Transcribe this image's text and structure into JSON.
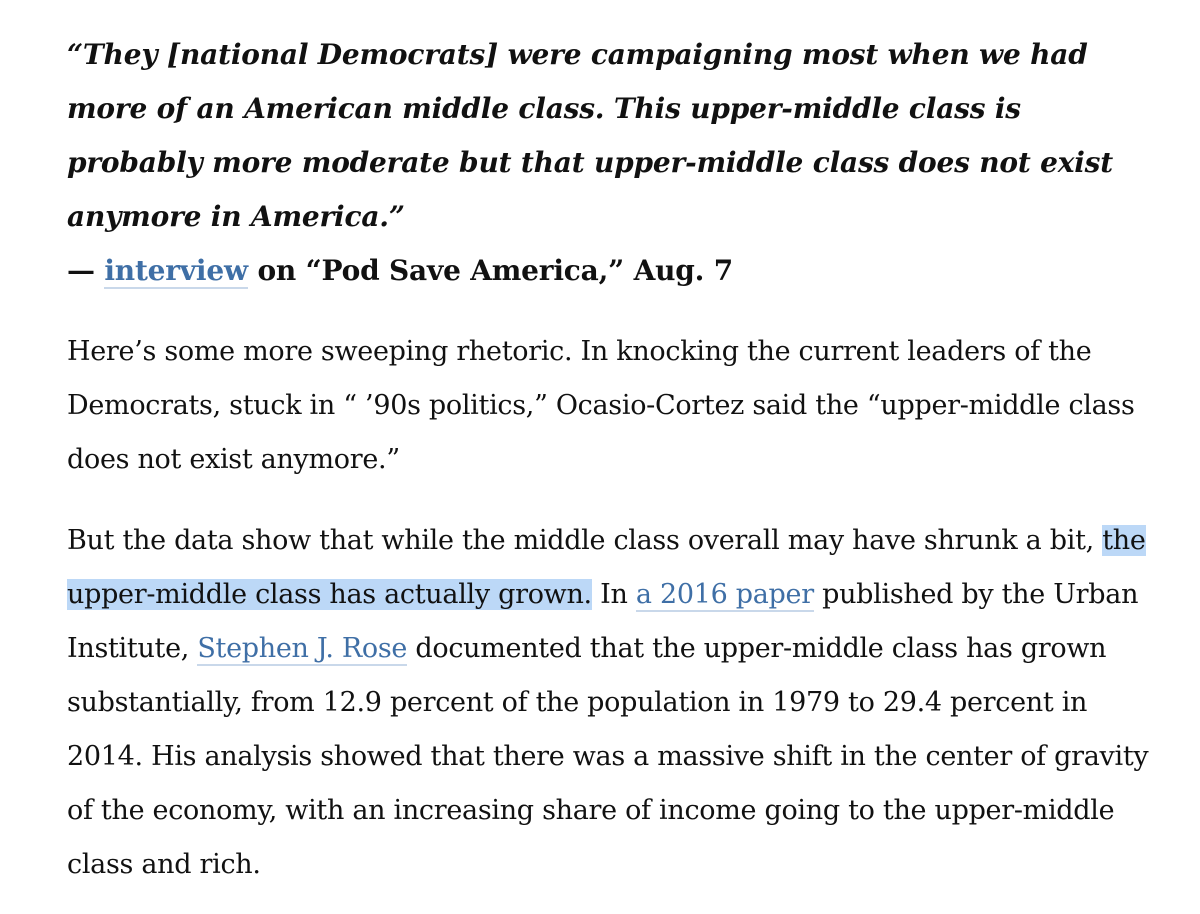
{
  "quote": {
    "text": "“They [national Democrats] were campaigning most when we had more of an American middle class. This upper-middle class is probably more moderate but that upper-middle class does not exist anymore in America.”"
  },
  "attribution": {
    "dash": "— ",
    "link_text": "interview",
    "rest": " on “Pod Save America,” Aug. 7"
  },
  "paragraph1": {
    "text": "Here’s some more sweeping rhetoric. In knocking the current leaders of the Democrats, stuck in “ ’90s politics,” Ocasio-Cortez said the “upper-middle class does not exist anymore.”"
  },
  "paragraph2": {
    "part1": "But the data show that while the middle class overall may have shrunk a bit, ",
    "highlighted": "the upper-middle class has actually grown.",
    "part2": " In ",
    "link1": "a 2016 paper",
    "part3": " published by the Urban Institute, ",
    "link2": "Stephen J. Rose",
    "part4": " documented that the upper-middle class has grown substantially, from 12.9 percent of the population in 1979 to 29.4 percent in 2014. His analysis showed that there was a massive shift in the center of gravity of the economy, with an increasing share of income going to the upper-middle class and rich."
  }
}
